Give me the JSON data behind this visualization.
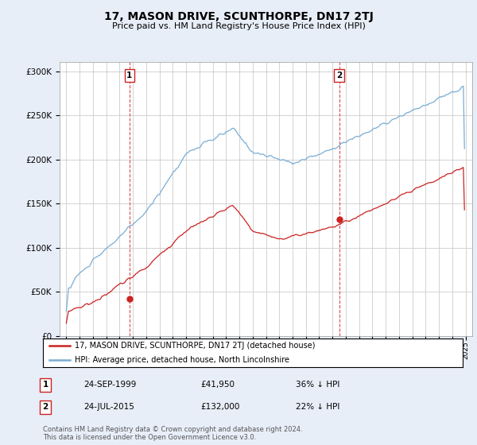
{
  "title": "17, MASON DRIVE, SCUNTHORPE, DN17 2TJ",
  "subtitle": "Price paid vs. HM Land Registry's House Price Index (HPI)",
  "ylim": [
    0,
    310000
  ],
  "yticks": [
    0,
    50000,
    100000,
    150000,
    200000,
    250000,
    300000
  ],
  "ytick_labels": [
    "£0",
    "£50K",
    "£100K",
    "£150K",
    "£200K",
    "£250K",
    "£300K"
  ],
  "hpi_color": "#7aadd4",
  "price_color": "#cc2222",
  "marker1_price": 41950,
  "marker1_year": "24-SEP-1999",
  "marker1_pct": "36% ↓ HPI",
  "marker2_price": 132000,
  "marker2_year": "24-JUL-2015",
  "marker2_pct": "22% ↓ HPI",
  "legend_house": "17, MASON DRIVE, SCUNTHORPE, DN17 2TJ (detached house)",
  "legend_hpi": "HPI: Average price, detached house, North Lincolnshire",
  "footer1": "Contains HM Land Registry data © Crown copyright and database right 2024.",
  "footer2": "This data is licensed under the Open Government Licence v3.0.",
  "bg_color": "#e8eef8",
  "plot_bg": "#ffffff",
  "grid_color": "#cccccc",
  "vline_color": "#cc2222"
}
